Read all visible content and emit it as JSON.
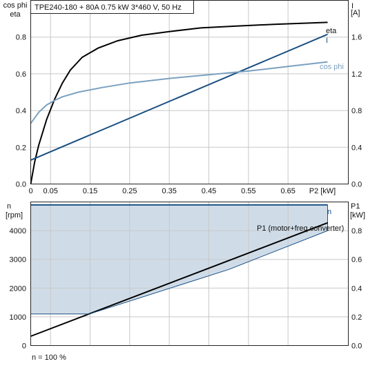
{
  "chart_data": [
    {
      "type": "line",
      "title": "TPE240-180 + 80A   0.75 kW   3*460 V, 50 Hz",
      "left_axis_label_1": "cos phi",
      "left_axis_label_2": "eta",
      "right_axis_label_1": "I",
      "right_axis_label_2": "[A]",
      "x_label": "P2 [kW]",
      "x_ticks": [
        "0",
        "0.05",
        "0.15",
        "0.25",
        "0.35",
        "0.45",
        "0.55",
        "0.65"
      ],
      "x_tick_values": [
        0,
        0.05,
        0.15,
        0.25,
        0.35,
        0.45,
        0.55,
        0.65
      ],
      "xlim": [
        0,
        0.75
      ],
      "y_left_ticks": [
        "0.0",
        "0.2",
        "0.4",
        "0.6",
        "0.8"
      ],
      "y_left_values": [
        0,
        0.2,
        0.4,
        0.6,
        0.8
      ],
      "ylim_left": [
        0,
        1.0
      ],
      "y_right_ticks": [
        "0.0",
        "0.4",
        "0.8",
        "1.2",
        "1.6"
      ],
      "y_right_values": [
        0,
        0.4,
        0.8,
        1.2,
        1.6
      ],
      "ylim_right": [
        0,
        2.0
      ],
      "grid": true,
      "series": [
        {
          "name": "eta",
          "axis": "left",
          "color": "#000000",
          "x": [
            0.0,
            0.01,
            0.02,
            0.04,
            0.06,
            0.08,
            0.1,
            0.13,
            0.17,
            0.22,
            0.28,
            0.35,
            0.43,
            0.52,
            0.62,
            0.75
          ],
          "y": [
            0.0,
            0.12,
            0.21,
            0.35,
            0.46,
            0.55,
            0.62,
            0.69,
            0.74,
            0.78,
            0.81,
            0.83,
            0.85,
            0.86,
            0.87,
            0.88
          ]
        },
        {
          "name": "I",
          "axis": "right",
          "color": "#1a4f82",
          "x": [
            0.0,
            0.75
          ],
          "y": [
            0.26,
            1.63
          ]
        },
        {
          "name": "cos phi",
          "axis": "left",
          "color": "#7aa0c0",
          "x": [
            0.0,
            0.02,
            0.04,
            0.06,
            0.08,
            0.12,
            0.18,
            0.25,
            0.35,
            0.45,
            0.55,
            0.65,
            0.75
          ],
          "y": [
            0.33,
            0.39,
            0.43,
            0.455,
            0.475,
            0.5,
            0.525,
            0.55,
            0.575,
            0.595,
            0.615,
            0.64,
            0.665
          ]
        }
      ]
    },
    {
      "type": "line",
      "left_axis_label_1": "n",
      "left_axis_label_2": "[rpm]",
      "right_axis_label_1": "P1",
      "right_axis_label_2": "[kW]",
      "y_left_ticks": [
        "0",
        "1000",
        "2000",
        "3000",
        "4000"
      ],
      "y_left_values": [
        0,
        1000,
        2000,
        3000,
        4000
      ],
      "ylim_left": [
        0,
        5000
      ],
      "y_right_ticks": [
        "0.0",
        "0.2",
        "0.4",
        "0.6",
        "0.8"
      ],
      "y_right_values": [
        0,
        0.2,
        0.4,
        0.6,
        0.8
      ],
      "ylim_right": [
        0,
        1.0
      ],
      "xlim": [
        0,
        0.75
      ],
      "grid": true,
      "footnote": "n = 100 %",
      "speed_max_rpm": 4900,
      "speed_min_rpm": 1100,
      "series": [
        {
          "name": "n",
          "axis": "left",
          "color": "#1a4f82",
          "x": [
            0.0,
            0.75
          ],
          "y": [
            4900,
            4900
          ]
        },
        {
          "name": "P1 (motor+freq.converter)",
          "axis": "right",
          "color": "#000000",
          "x": [
            0.0,
            0.75
          ],
          "y": [
            0.065,
            0.855
          ]
        },
        {
          "name": "",
          "axis": "right",
          "color": "#1a4f82",
          "x": [
            0.0,
            0.148,
            0.5,
            0.75
          ],
          "y": [
            0.22,
            0.22,
            0.53,
            0.8
          ]
        }
      ]
    }
  ]
}
